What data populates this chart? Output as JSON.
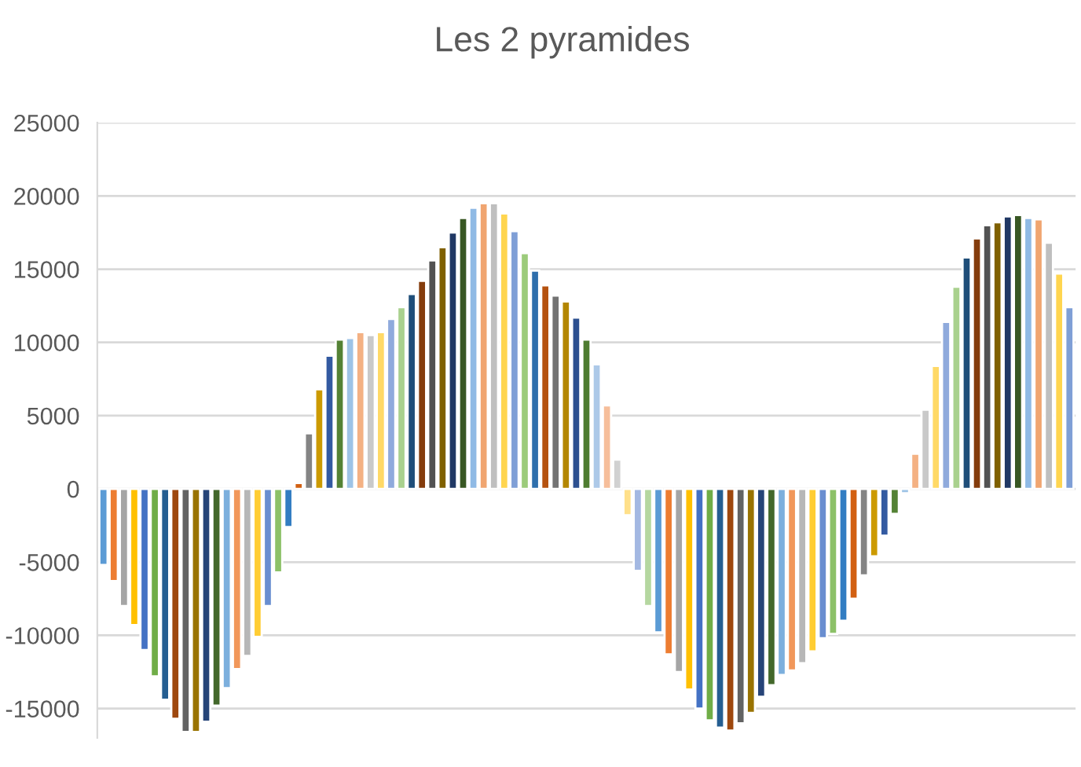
{
  "chart_data": {
    "type": "bar",
    "title": "Les 2 pyramides",
    "categories": [
      null,
      null,
      null,
      null,
      null,
      null,
      null,
      null,
      null,
      null,
      null,
      null,
      null,
      null,
      null,
      null,
      null,
      null,
      null,
      null,
      null,
      null,
      null,
      null,
      null,
      null,
      null,
      null,
      null,
      null,
      null,
      null,
      null,
      null,
      null,
      null,
      null,
      null,
      null,
      null,
      null,
      null,
      null,
      null,
      null,
      null,
      null,
      null,
      null,
      null,
      null,
      null,
      null,
      null,
      null,
      null,
      null,
      null,
      null,
      null,
      null,
      null,
      null,
      null,
      null,
      null,
      null,
      null,
      null,
      null,
      null,
      null,
      null,
      null,
      null,
      null,
      null,
      null,
      null,
      null,
      null,
      null,
      null,
      null,
      null,
      null,
      null,
      null,
      null,
      null,
      null,
      null,
      null,
      null,
      null
    ],
    "values": [
      -5200,
      -6300,
      -8000,
      -9300,
      -11000,
      -12800,
      -14400,
      -15700,
      -16600,
      -16600,
      -15900,
      -14800,
      -13600,
      -12300,
      -11400,
      -10100,
      -8000,
      -5700,
      -2600,
      400,
      3800,
      6800,
      9100,
      10200,
      10300,
      10700,
      10500,
      10700,
      11600,
      12400,
      13300,
      14200,
      15600,
      16500,
      17500,
      18500,
      19200,
      19500,
      19500,
      18800,
      17600,
      16100,
      14900,
      13900,
      13200,
      12800,
      11700,
      10200,
      8500,
      5700,
      2000,
      -1800,
      -5600,
      -8000,
      -9800,
      -11300,
      -12500,
      -13700,
      -15000,
      -15800,
      -16300,
      -16500,
      -16000,
      -15300,
      -14200,
      -13400,
      -12700,
      -12400,
      -11900,
      -11100,
      -10200,
      -9900,
      -9000,
      -7500,
      -5900,
      -4600,
      -3200,
      -1700,
      -300,
      2400,
      5400,
      8400,
      11400,
      13800,
      15800,
      17100,
      18000,
      18200,
      18600,
      18700,
      18500,
      18400,
      16800,
      14700,
      12400
    ],
    "colors": [
      "#5b9bd5",
      "#ed7d31",
      "#a5a5a5",
      "#ffc000",
      "#4472c4",
      "#70ad47",
      "#255e91",
      "#9e480e",
      "#636363",
      "#997300",
      "#264478",
      "#43682b",
      "#7cafdd",
      "#f1975a",
      "#b7b7b7",
      "#ffcd33",
      "#698ed0",
      "#8cc168",
      "#327dc2",
      "#d26012",
      "#848484",
      "#cc9a00",
      "#335aa1",
      "#548235",
      "#9dc3e6",
      "#f4b183",
      "#c9c9c9",
      "#ffd966",
      "#8faadc",
      "#a9d18e",
      "#1f4e79",
      "#843c0c",
      "#525252",
      "#7f6000",
      "#203864",
      "#385723",
      "#8fbae5",
      "#f0a570",
      "#bfbfbf",
      "#ffd54f",
      "#7f9fd6",
      "#9ccb7b",
      "#2e6fac",
      "#b5520f",
      "#737373",
      "#b38600",
      "#2d5090",
      "#4e7c30",
      "#adc9e8",
      "#f6be9a",
      "#d1d1d1",
      "#ffe08a",
      "#a3b8e2",
      "#b5d7a0",
      "#5b9bd5",
      "#ed7d31",
      "#a5a5a5",
      "#ffc000",
      "#4472c4",
      "#70ad47",
      "#255e91",
      "#9e480e",
      "#636363",
      "#997300",
      "#264478",
      "#43682b",
      "#7cafdd",
      "#f1975a",
      "#b7b7b7",
      "#ffcd33",
      "#698ed0",
      "#8cc168",
      "#327dc2",
      "#d26012",
      "#848484",
      "#cc9a00",
      "#335aa1",
      "#548235",
      "#9dc3e6",
      "#f4b183",
      "#c9c9c9",
      "#ffd966",
      "#8faadc",
      "#a9d18e",
      "#1f4e79",
      "#843c0c",
      "#525252",
      "#7f6000",
      "#203864",
      "#385723",
      "#8fbae5",
      "#f0a570",
      "#bfbfbf",
      "#ffd54f",
      "#7f9fd6"
    ],
    "ylim": [
      -17000,
      25000
    ],
    "yticks": [
      -15000,
      -10000,
      -5000,
      0,
      5000,
      10000,
      15000,
      20000,
      25000
    ],
    "grid": "y",
    "legend": false
  }
}
